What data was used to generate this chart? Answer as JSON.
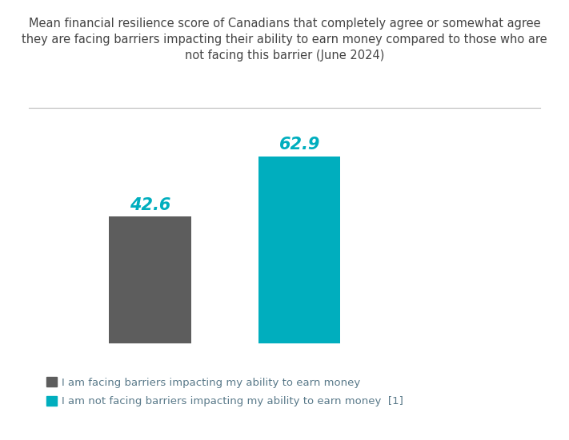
{
  "title": "Mean financial resilience score of Canadians that completely agree or somewhat agree\nthey are facing barriers impacting their ability to earn money compared to those who are\nnot facing this barrier (June 2024)",
  "categories": [
    "Facing barriers",
    "Not facing barriers"
  ],
  "values": [
    42.6,
    62.9
  ],
  "bar_colors": [
    "#5d5d5d",
    "#00AEBE"
  ],
  "label_color": "#00AEBE",
  "value_labels": [
    "42.6",
    "62.9"
  ],
  "legend_labels": [
    "I am facing barriers impacting my ability to earn money",
    "I am not facing barriers impacting my ability to earn money  [1]"
  ],
  "legend_colors": [
    "#5d5d5d",
    "#00AEBE"
  ],
  "ylim": [
    0,
    80
  ],
  "x_positions": [
    1,
    2
  ],
  "bar_width": 0.55,
  "xlim": [
    0.3,
    3.5
  ],
  "background_color": "#ffffff",
  "title_fontsize": 10.5,
  "label_fontsize": 15,
  "legend_fontsize": 9.5,
  "title_color": "#444444",
  "legend_text_color": "#5a7a8a"
}
